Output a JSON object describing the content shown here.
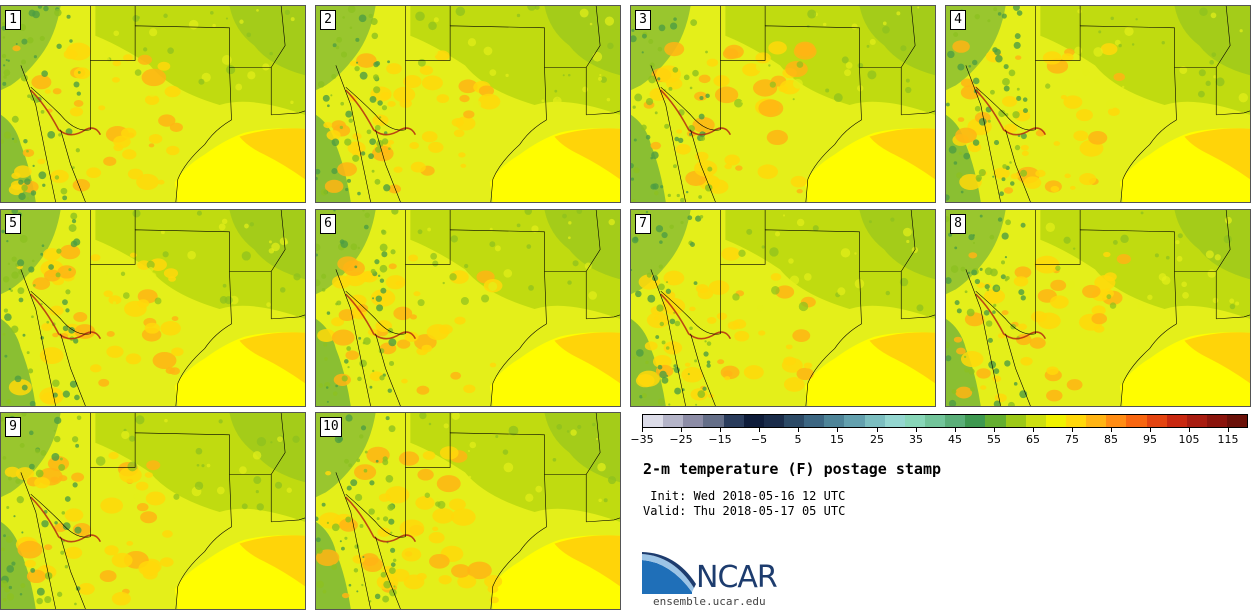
{
  "panels": [
    {
      "label": "1"
    },
    {
      "label": "2"
    },
    {
      "label": "3"
    },
    {
      "label": "4"
    },
    {
      "label": "5"
    },
    {
      "label": "6"
    },
    {
      "label": "7"
    },
    {
      "label": "8"
    },
    {
      "label": "9"
    },
    {
      "label": "10"
    }
  ],
  "colorbar": {
    "min": -35,
    "max": 115,
    "step": 5,
    "tick_labels": [
      "−35",
      "−25",
      "−15",
      "−5",
      "5",
      "15",
      "25",
      "35",
      "45",
      "55",
      "65",
      "75",
      "85",
      "95",
      "105",
      "115"
    ],
    "colors": [
      "#dcdce8",
      "#b4b4c8",
      "#8c8ca6",
      "#646e88",
      "#2a3c5c",
      "#0e1c3a",
      "#1a2c4a",
      "#2c4a66",
      "#3c6682",
      "#4e8498",
      "#63a0ae",
      "#7cbec0",
      "#94d6d0",
      "#88d6b8",
      "#72c49a",
      "#5aae78",
      "#3e9850",
      "#64ae30",
      "#9cc818",
      "#ccdf10",
      "#f0f200",
      "#ffd80a",
      "#ffb414",
      "#ff8c14",
      "#f86610",
      "#e44410",
      "#c82810",
      "#a81c10",
      "#8a140c",
      "#6a1008"
    ]
  },
  "map_colors": {
    "base": "#e4ef1a",
    "warm": "#ffd80a",
    "hot": "#ffb414",
    "gulf": "#fffd00",
    "gulf_warm": "#ffcf0a",
    "cool": "#b4d40e",
    "cooler": "#8cc020",
    "mountain": "#4e9e42",
    "ridge": "#b42a12",
    "border": "#000000"
  },
  "title": "2-m temperature (F) postage stamp",
  "init_text": " Init: Wed 2018-05-16 12 UTC",
  "valid_text": "Valid: Thu 2018-05-17 05 UTC",
  "logo_text": "NCAR",
  "site": "ensemble.ucar.edu"
}
